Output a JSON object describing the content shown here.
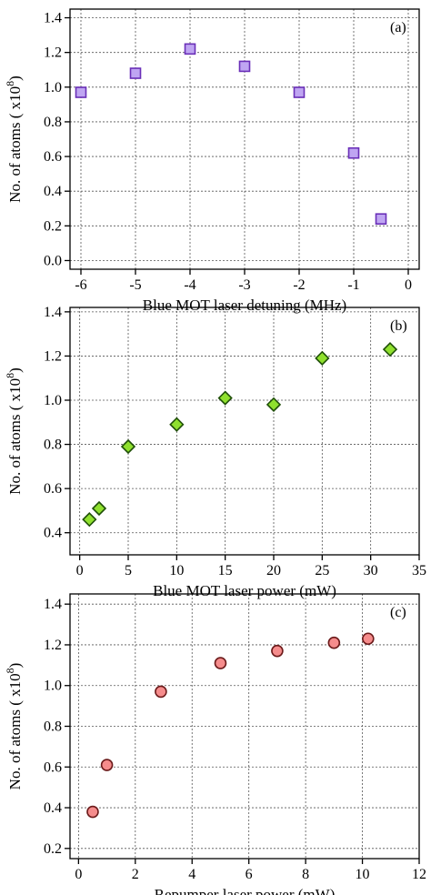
{
  "chart_data": [
    {
      "type": "scatter",
      "panel_tag": "(a)",
      "xlabel": "Blue MOT laser detuning (MHz)",
      "ylabel": "No. of atoms ( x10",
      "ylabel_exponent": "8",
      "ylabel_close": ")",
      "xlim": [
        -6.2,
        0.2
      ],
      "ylim": [
        -0.05,
        1.45
      ],
      "xticks": [
        -6,
        -5,
        -4,
        -3,
        -2,
        -1,
        0
      ],
      "yticks": [
        0.0,
        0.2,
        0.4,
        0.6,
        0.8,
        1.0,
        1.2,
        1.4
      ],
      "ytick_format": "0.0",
      "grid": true,
      "marker": "square",
      "marker_fill": "#bfa5f2",
      "marker_edge": "#6a2fb8",
      "series": [
        {
          "x": [
            -6,
            -5,
            -4,
            -3,
            -2,
            -1,
            -0.5
          ],
          "y": [
            0.97,
            1.08,
            1.22,
            1.12,
            0.97,
            0.62,
            0.24
          ]
        }
      ]
    },
    {
      "type": "scatter",
      "panel_tag": "(b)",
      "xlabel": "Blue MOT laser power (mW)",
      "ylabel": "No. of atoms ( x10",
      "ylabel_exponent": "8",
      "ylabel_close": ")",
      "xlim": [
        -1,
        35
      ],
      "ylim": [
        0.3,
        1.42
      ],
      "xticks": [
        0,
        5,
        10,
        15,
        20,
        25,
        30,
        35
      ],
      "yticks": [
        0.4,
        0.6,
        0.8,
        1.0,
        1.2,
        1.4
      ],
      "ytick_format": "0.0",
      "grid": true,
      "marker": "diamond",
      "marker_fill": "#8fe02e",
      "marker_edge": "#1f4f08",
      "series": [
        {
          "x": [
            1,
            2,
            5,
            10,
            15,
            20,
            25,
            32
          ],
          "y": [
            0.46,
            0.51,
            0.79,
            0.89,
            1.01,
            0.98,
            1.19,
            1.23
          ]
        }
      ]
    },
    {
      "type": "scatter",
      "panel_tag": "(c)",
      "xlabel": "Repumper laser power (mW)",
      "ylabel": "No. of atoms ( x10",
      "ylabel_exponent": "8",
      "ylabel_close": ")",
      "xlim": [
        -0.3,
        12.0
      ],
      "ylim": [
        0.15,
        1.45
      ],
      "xticks": [
        0,
        2,
        4,
        6,
        8,
        10,
        12
      ],
      "yticks": [
        0.2,
        0.4,
        0.6,
        0.8,
        1.0,
        1.2,
        1.4
      ],
      "ytick_format": "0.0",
      "grid": true,
      "marker": "circle",
      "marker_fill": "#f58c8c",
      "marker_edge": "#6b1a1a",
      "series": [
        {
          "x": [
            0.5,
            1.0,
            2.9,
            5.0,
            7.0,
            9.0,
            10.2
          ],
          "y": [
            0.38,
            0.61,
            0.97,
            1.11,
            1.17,
            1.21,
            1.23
          ]
        }
      ]
    }
  ]
}
